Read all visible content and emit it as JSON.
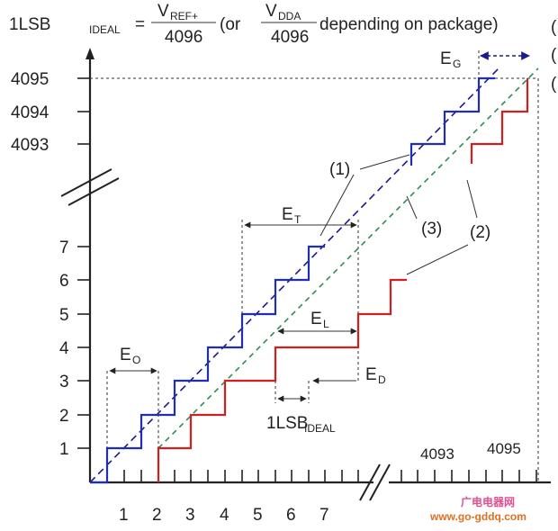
{
  "formula": {
    "lhs": "1LSB",
    "lhs_sub": "IDEAL",
    "equals": "=",
    "num1": "V",
    "num1_sub": "REF+",
    "den1": "4096",
    "or_open": "(or",
    "num2": "V",
    "num2_sub": "DDA",
    "den2": "4096",
    "tail": "depending on package)"
  },
  "y_ticks": [
    "1",
    "2",
    "3",
    "4",
    "5",
    "6",
    "7",
    "4093",
    "4094",
    "4095"
  ],
  "x_ticks_low": [
    "1",
    "2",
    "3",
    "4",
    "5",
    "6",
    "7"
  ],
  "x_ticks_high": [
    "4093",
    "4095"
  ],
  "labels": {
    "eg_main": "E",
    "eg_sub": "G",
    "et_main": "E",
    "et_sub": "T",
    "el_main": "E",
    "el_sub": "L",
    "eo_main": "E",
    "eo_sub": "O",
    "ed_main": "E",
    "ed_sub": "D",
    "lsb_main": "1LSB",
    "lsb_sub": "IDEAL",
    "callout_1": "(1)",
    "callout_2": "(2)",
    "callout_3": "(3)"
  },
  "edge_marks": [
    "(",
    "(",
    "("
  ],
  "watermark": {
    "site_cn": "广电电器网",
    "url": "www.go-gddq.com"
  },
  "colors": {
    "ideal": "#1a1a8c",
    "actual": "#d01f1f",
    "end_point": "#2e8b57",
    "axis": "#222222"
  }
}
